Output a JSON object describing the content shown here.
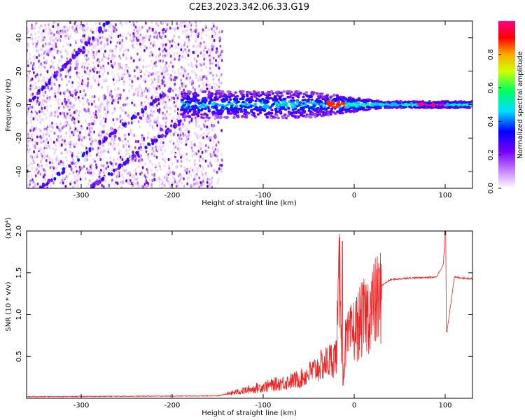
{
  "title": "C2E3.2023.342.06.33.G19",
  "colors": {
    "snr_line": "#ee2222",
    "axis": "#000000"
  },
  "chart_data": [
    {
      "type": "heatmap",
      "xlabel": "Height of straight line (km)",
      "ylabel": "Frequency (Hz)",
      "xlim": [
        -360,
        130
      ],
      "ylim": [
        -50,
        50
      ],
      "x_ticks": [
        -300,
        -200,
        -100,
        0,
        100
      ],
      "x_tick_labels": [
        "-300",
        "-200",
        "-100",
        "0",
        "100"
      ],
      "y_ticks": [
        -40,
        -20,
        0,
        20,
        40
      ],
      "y_tick_labels": [
        "-40",
        "-20",
        "0",
        "20",
        "40"
      ],
      "colorbar": {
        "label": "Normalized spectral amplitude",
        "range": [
          0.0,
          1.0
        ],
        "ticks": [
          0.0,
          0.2,
          0.4,
          0.6,
          0.8
        ],
        "tick_labels": [
          "0.0",
          "0.2",
          "0.4",
          "0.6",
          "0.8"
        ],
        "colormap": [
          "#ffffff",
          "#8800ff",
          "#0000ff",
          "#00ffff",
          "#00ff00",
          "#ffff00",
          "#ff0000",
          "#ff0088"
        ]
      },
      "features": {
        "noise_region_x": [
          -360,
          -145
        ],
        "signal_band": {
          "x_start": -190,
          "x_end": 130,
          "center_hz": 0,
          "width_hz_start": 8,
          "width_hz_end": 2
        },
        "diagonal_tracks": [
          {
            "x": [
              -360,
              -270
            ],
            "y": [
              0,
              50
            ]
          },
          {
            "x": [
              -345,
              -200
            ],
            "y": [
              -50,
              10
            ]
          },
          {
            "x": [
              -290,
              -190
            ],
            "y": [
              -50,
              -10
            ]
          }
        ]
      }
    },
    {
      "type": "line",
      "xlabel": "Height of straight line (km)",
      "ylabel": "SNR (10 * v/v)",
      "scale_label": "(x10⁴)",
      "xlim": [
        -360,
        130
      ],
      "ylim": [
        0,
        2.0
      ],
      "x_ticks": [
        -300,
        -200,
        -100,
        0,
        100
      ],
      "x_tick_labels": [
        "-300",
        "-200",
        "-100",
        "0",
        "100"
      ],
      "y_ticks": [
        0.5,
        1.0,
        1.5,
        2.0
      ],
      "y_tick_labels": [
        "0.5",
        "1.0",
        "1.5",
        "2.0"
      ],
      "series": [
        {
          "key_points": {
            "x": [
              -360,
              -150,
              -130,
              -100,
              -60,
              -40,
              -20,
              -15,
              -13,
              -10,
              0,
              20,
              30,
              40,
              60,
              90,
              98,
              100,
              102,
              110,
              130
            ],
            "y": [
              0.02,
              0.03,
              0.08,
              0.15,
              0.25,
              0.4,
              0.55,
              1.85,
              0.1,
              0.7,
              0.9,
              1.2,
              1.35,
              1.42,
              1.44,
              1.45,
              1.6,
              2.0,
              0.8,
              1.45,
              1.43
            ]
          }
        }
      ]
    }
  ]
}
